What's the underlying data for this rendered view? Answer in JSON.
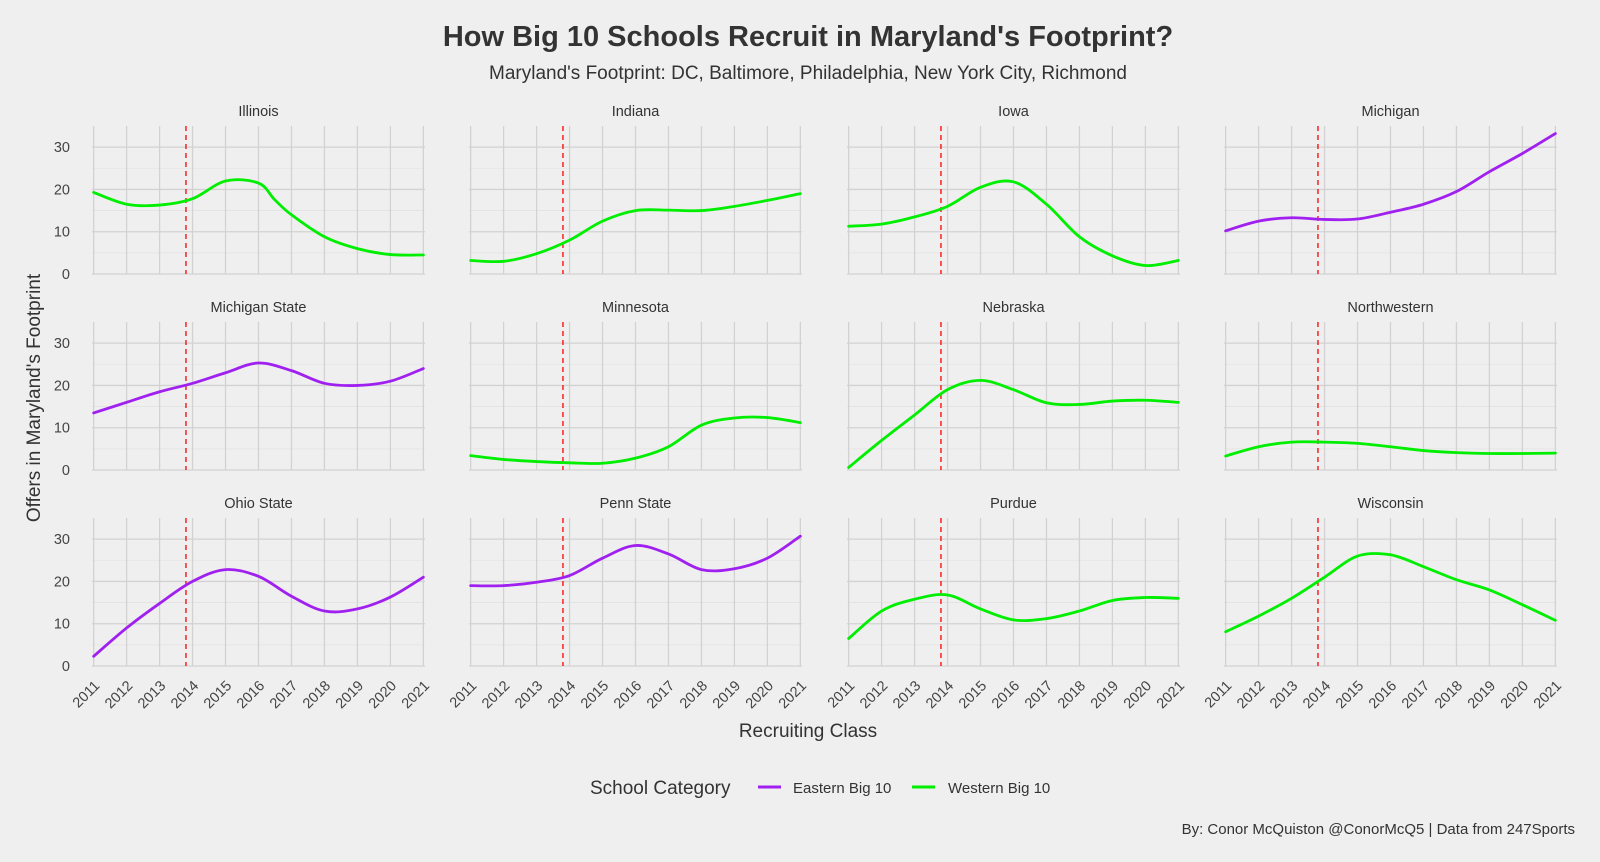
{
  "title": "How Big 10 Schools Recruit in Maryland's Footprint?",
  "subtitle": "Maryland's Footprint: DC, Baltimore, Philadelphia, New York City, Richmond",
  "caption": "By: Conor McQuiston @ConorMcQ5 | Data from 247Sports",
  "chart_data": {
    "type": "line",
    "xlabel": "Recruiting Class",
    "ylabel": "Offers in Maryland's Footprint",
    "x": [
      2011,
      2012,
      2013,
      2014,
      2015,
      2016,
      2017,
      2018,
      2019,
      2020,
      2021
    ],
    "xlim": [
      2010.95,
      2021.05
    ],
    "ylim": [
      0,
      35
    ],
    "yticks": [
      0,
      10,
      20,
      30
    ],
    "grid": true,
    "reference_line": {
      "x": 2013.8,
      "color": "#ff0000",
      "style": "dashed"
    },
    "legend": {
      "title": "School Category",
      "position": "bottom",
      "entries": [
        {
          "name": "Eastern Big 10",
          "color": "#a020f0"
        },
        {
          "name": "Western Big 10",
          "color": "#00ee00"
        }
      ]
    },
    "colors": {
      "Eastern Big 10": "#a020f0",
      "Western Big 10": "#00ee00"
    },
    "panels": [
      {
        "school": "Illinois",
        "category": "Western Big 10",
        "x": [
          2011,
          2012,
          2013,
          2014,
          2015,
          2016,
          2016.5,
          2017,
          2018,
          2019,
          2020,
          2021
        ],
        "y": [
          19.3,
          16.5,
          16.3,
          17.8,
          22,
          21.5,
          17.5,
          14,
          8.8,
          6,
          4.6,
          4.5
        ]
      },
      {
        "school": "Indiana",
        "category": "Western Big 10",
        "x": [
          2011,
          2012,
          2013,
          2014,
          2015,
          2016,
          2017,
          2018,
          2019,
          2020,
          2021
        ],
        "y": [
          3.2,
          3,
          4.8,
          8,
          12.5,
          15,
          15.1,
          15,
          16,
          17.4,
          19
        ]
      },
      {
        "school": "Iowa",
        "category": "Western Big 10",
        "x": [
          2011,
          2012,
          2013,
          2014,
          2015,
          2016,
          2017,
          2018,
          2019,
          2020,
          2021
        ],
        "y": [
          11.3,
          11.8,
          13.5,
          16,
          20.5,
          21.8,
          16.5,
          8.8,
          4.3,
          2,
          3.2
        ]
      },
      {
        "school": "Michigan",
        "category": "Eastern Big 10",
        "x": [
          2011,
          2012,
          2013,
          2014,
          2015,
          2016,
          2017,
          2018,
          2019,
          2020,
          2021
        ],
        "y": [
          10.2,
          12.5,
          13.3,
          12.9,
          13,
          14.6,
          16.5,
          19.5,
          24.2,
          28.5,
          33.2
        ]
      },
      {
        "school": "Michigan State",
        "category": "Eastern Big 10",
        "x": [
          2011,
          2012,
          2013,
          2014,
          2015,
          2016,
          2017,
          2018,
          2019,
          2020,
          2021
        ],
        "y": [
          13.5,
          16,
          18.5,
          20.5,
          23,
          25.3,
          23.5,
          20.5,
          20,
          21,
          24
        ]
      },
      {
        "school": "Minnesota",
        "category": "Western Big 10",
        "x": [
          2011,
          2012,
          2013,
          2014,
          2015,
          2016,
          2017,
          2018,
          2019,
          2020,
          2021
        ],
        "y": [
          3.4,
          2.5,
          2,
          1.7,
          1.6,
          2.8,
          5.5,
          10.6,
          12.3,
          12.4,
          11.2
        ]
      },
      {
        "school": "Nebraska",
        "category": "Western Big 10",
        "x": [
          2011,
          2012,
          2013,
          2014,
          2015,
          2016,
          2017,
          2018,
          2019,
          2020,
          2021
        ],
        "y": [
          0.6,
          7,
          13,
          19,
          21.2,
          19,
          15.9,
          15.5,
          16.3,
          16.5,
          16
        ]
      },
      {
        "school": "Northwestern",
        "category": "Western Big 10",
        "x": [
          2011,
          2012,
          2013,
          2014,
          2015,
          2016,
          2017,
          2018,
          2019,
          2020,
          2021
        ],
        "y": [
          3.3,
          5.5,
          6.6,
          6.6,
          6.3,
          5.5,
          4.6,
          4.1,
          3.9,
          3.9,
          4
        ]
      },
      {
        "school": "Ohio State",
        "category": "Eastern Big 10",
        "x": [
          2011,
          2012,
          2013,
          2014,
          2015,
          2016,
          2017,
          2018,
          2019,
          2020,
          2021
        ],
        "y": [
          2.3,
          9,
          14.8,
          20,
          22.8,
          21.2,
          16.5,
          13,
          13.5,
          16.3,
          21
        ]
      },
      {
        "school": "Penn State",
        "category": "Eastern Big 10",
        "x": [
          2011,
          2012,
          2013,
          2014,
          2015,
          2016,
          2017,
          2018,
          2019,
          2020,
          2021
        ],
        "y": [
          19,
          19,
          19.8,
          21.4,
          25.5,
          28.5,
          26.5,
          22.8,
          23,
          25.5,
          30.7
        ]
      },
      {
        "school": "Purdue",
        "category": "Western Big 10",
        "x": [
          2011,
          2012,
          2013,
          2014,
          2015,
          2016,
          2017,
          2018,
          2019,
          2020,
          2021
        ],
        "y": [
          6.5,
          13,
          15.8,
          16.8,
          13.5,
          10.9,
          11.2,
          13,
          15.5,
          16.2,
          16
        ]
      },
      {
        "school": "Wisconsin",
        "category": "Western Big 10",
        "x": [
          2011,
          2012,
          2013,
          2014,
          2015,
          2016,
          2017,
          2018,
          2019,
          2020,
          2021
        ],
        "y": [
          8.1,
          11.8,
          16,
          21,
          26,
          26.3,
          23.5,
          20.4,
          18,
          14.5,
          10.8
        ]
      }
    ]
  }
}
